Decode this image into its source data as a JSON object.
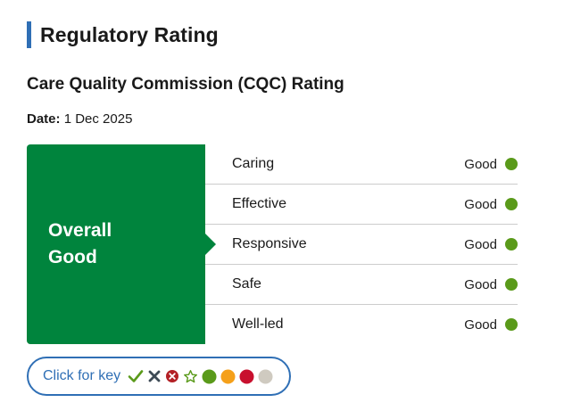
{
  "section": {
    "title": "Regulatory Rating"
  },
  "rating": {
    "subtitle": "Care Quality Commission (CQC) Rating",
    "date_label": "Date:",
    "date_value": "1 Dec 2025",
    "overall_line1": "Overall",
    "overall_line2": "Good",
    "items": [
      {
        "name": "Caring",
        "value": "Good",
        "color": "#5a9a1a"
      },
      {
        "name": "Effective",
        "value": "Good",
        "color": "#5a9a1a"
      },
      {
        "name": "Responsive",
        "value": "Good",
        "color": "#5a9a1a"
      },
      {
        "name": "Safe",
        "value": "Good",
        "color": "#5a9a1a"
      },
      {
        "name": "Well-led",
        "value": "Good",
        "color": "#5a9a1a"
      }
    ]
  },
  "key": {
    "label": "Click for key",
    "icons": [
      {
        "name": "checkmark-icon",
        "color": "#5a9a1a"
      },
      {
        "name": "cross-icon",
        "color": "#3d4a55"
      },
      {
        "name": "circle-cross-icon",
        "color": "#b32025"
      },
      {
        "name": "star-outline-icon",
        "color": "#5a9a1a"
      },
      {
        "name": "green-dot-icon",
        "color": "#5a9a1a"
      },
      {
        "name": "amber-dot-icon",
        "color": "#f5a01a"
      },
      {
        "name": "red-dot-icon",
        "color": "#c8102e"
      },
      {
        "name": "grey-dot-icon",
        "color": "#cfcac0"
      }
    ]
  },
  "colors": {
    "accent": "#2f6fb5",
    "overall_bg": "#00843d",
    "divider": "#cccccc"
  }
}
